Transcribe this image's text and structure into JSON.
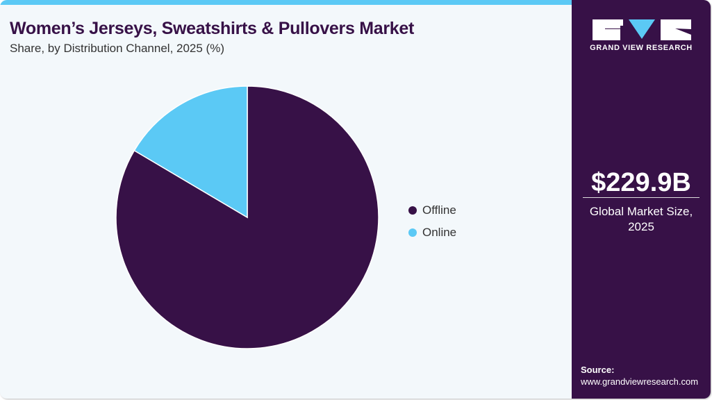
{
  "header": {
    "title": "Women’s Jerseys, Sweatshirts & Pullovers Market",
    "subtitle": "Share, by Distribution Channel, 2025 (%)"
  },
  "sidebar": {
    "brand": "GRAND VIEW RESEARCH",
    "market_size": "$229.9B",
    "market_caption_1": "Global Market Size,",
    "market_caption_2": "2025",
    "source_label": "Source:",
    "source_url": "www.grandviewresearch.com"
  },
  "colors": {
    "accent": "#5bc9f5",
    "brand": "#371147",
    "background": "#f3f8fb"
  },
  "legend": [
    {
      "label": "Offline",
      "color": "#371147"
    },
    {
      "label": "Online",
      "color": "#5bc9f5"
    }
  ],
  "chart_data": {
    "type": "pie",
    "title": "Women’s Jerseys, Sweatshirts & Pullovers Market",
    "subtitle": "Share, by Distribution Channel, 2025 (%)",
    "categories": [
      "Offline",
      "Online"
    ],
    "values": [
      83.5,
      16.5
    ],
    "colors": [
      "#371147",
      "#5bc9f5"
    ],
    "legend_position": "right",
    "unit": "%"
  }
}
